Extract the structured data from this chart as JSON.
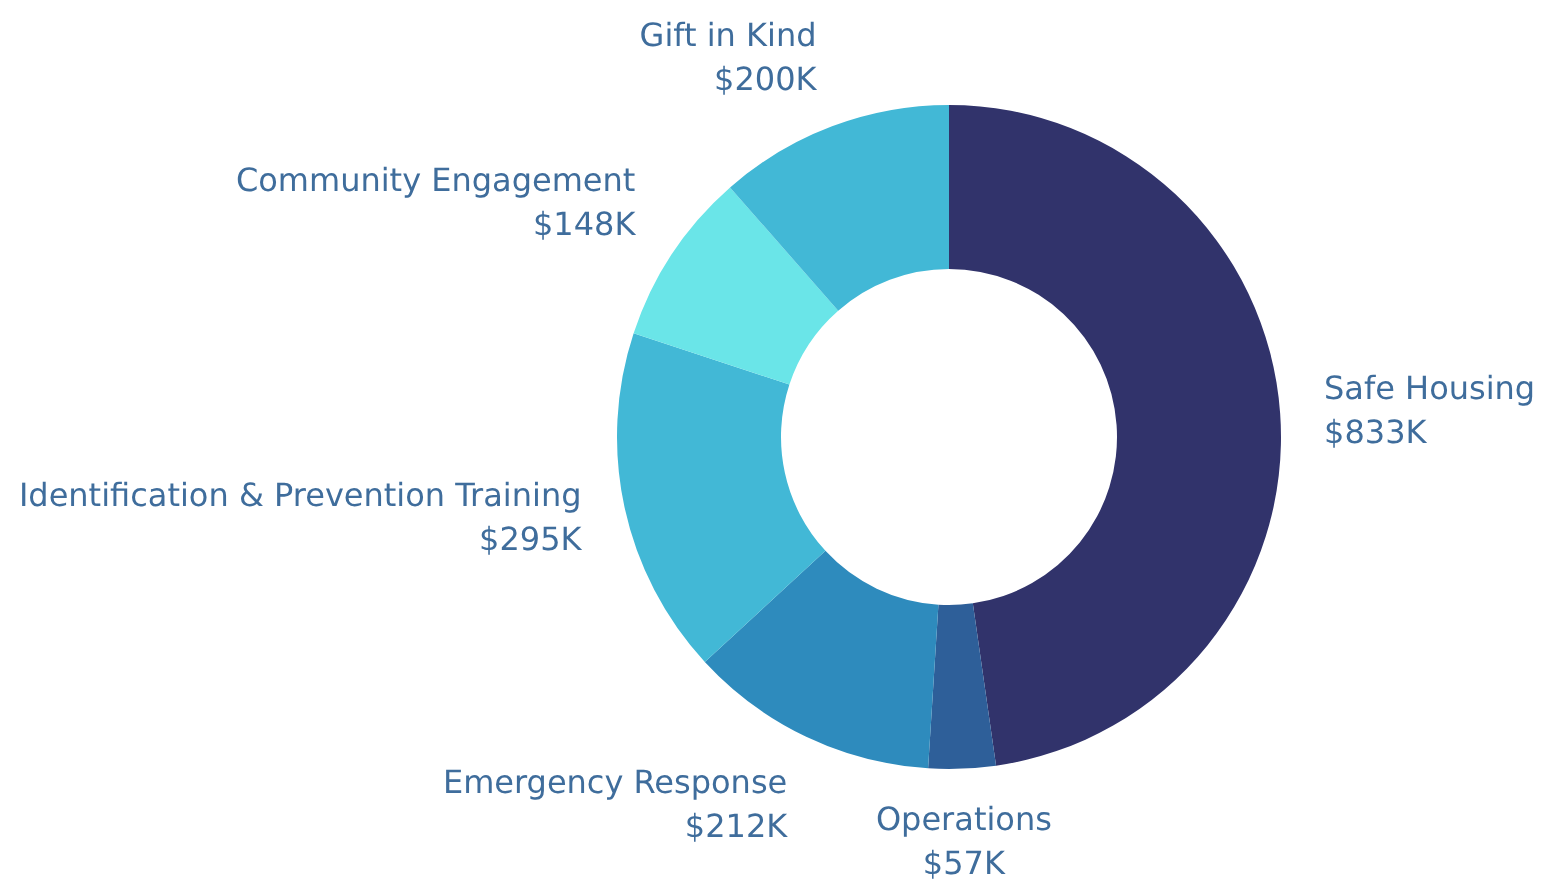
{
  "chart_data": {
    "type": "donut",
    "categories": [
      "Safe Housing",
      "Operations",
      "Emergency Response",
      "Identification & Prevention Training",
      "Community Engagement",
      "Gift in Kind"
    ],
    "values": [
      833,
      57,
      212,
      295,
      148,
      200
    ],
    "colors": [
      "#31336b",
      "#2e5f99",
      "#2e8bbd",
      "#42b8d6",
      "#6ae5e8",
      "#42b8d6"
    ],
    "value_labels": [
      "$833K",
      "$57K",
      "$212K",
      "$295K",
      "$148K",
      "$200K"
    ]
  }
}
